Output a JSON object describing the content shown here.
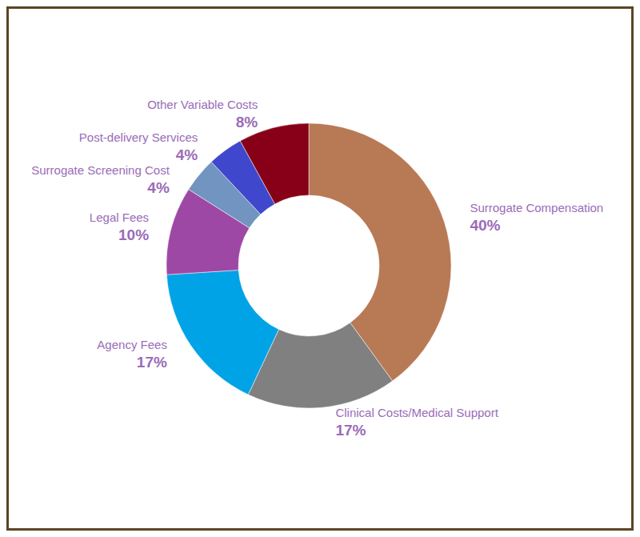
{
  "chart_data": {
    "type": "pie",
    "categories": [
      "Surrogate Compensation",
      "Clinical Costs/Medical Support",
      "Agency Fees",
      "Legal Fees",
      "Surrogate Screening Cost",
      "Post-delivery Services",
      "Other Variable Costs"
    ],
    "values": [
      40,
      17,
      17,
      10,
      4,
      4,
      8
    ],
    "value_labels": [
      "40%",
      "17%",
      "17%",
      "10%",
      "4%",
      "4%",
      "8%"
    ],
    "colors": [
      "#b87955",
      "#808080",
      "#00a3e6",
      "#9e48a6",
      "#7195c0",
      "#3f48cc",
      "#880018"
    ],
    "data_labels": true
  }
}
